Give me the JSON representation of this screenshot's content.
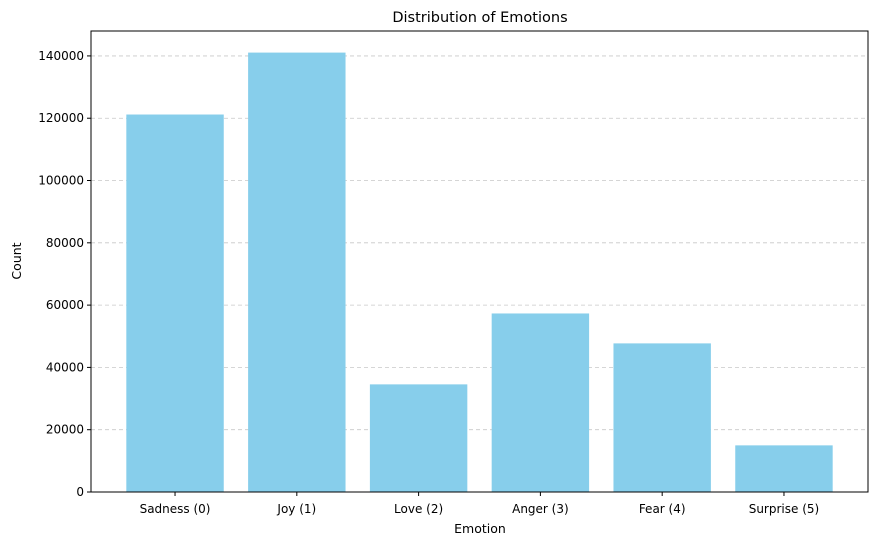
{
  "chart_data": {
    "type": "bar",
    "title": "Distribution of Emotions",
    "xlabel": "Emotion",
    "ylabel": "Count",
    "categories": [
      "Sadness (0)",
      "Joy (1)",
      "Love (2)",
      "Anger (3)",
      "Fear (4)",
      "Surprise (5)"
    ],
    "values": [
      121187,
      141067,
      34554,
      57317,
      47712,
      14972
    ],
    "ylim": [
      0,
      148000
    ],
    "yticks": [
      0,
      20000,
      40000,
      60000,
      80000,
      100000,
      120000,
      140000
    ],
    "grid": {
      "y": true,
      "x": false,
      "style": "dashed"
    },
    "bar_color": "#87ceeb",
    "grid_color": "#c8c8c8"
  }
}
